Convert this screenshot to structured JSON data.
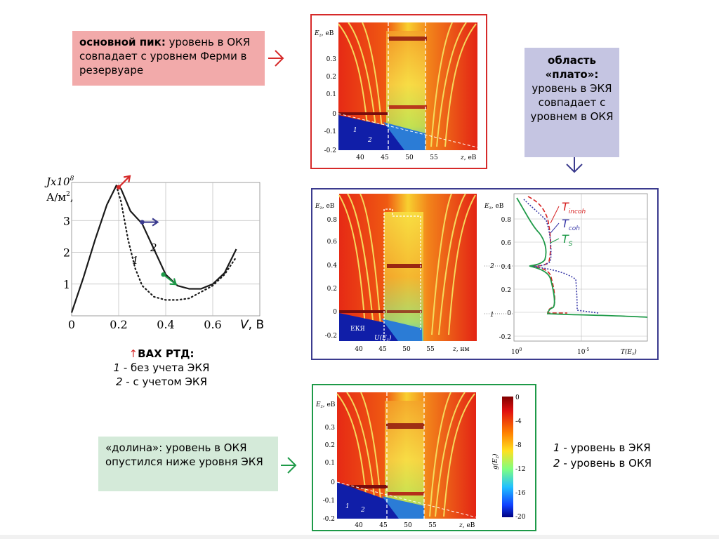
{
  "notes": {
    "peak": {
      "bold": "основной пик:",
      "text": " уровень в ОКЯ совпадает с уровнем Ферми в резервуаре"
    },
    "plateau": {
      "line1": "область",
      "line2": "«плато»:",
      "text": "уровень в ЭКЯ совпадает с уровнем в ОКЯ"
    },
    "valley": {
      "text": "«долина»: уровень в ОКЯ опустился ниже уровня ЭКЯ"
    }
  },
  "iv_chart": {
    "ylabel_main": "Jx10",
    "ylabel_exp": "8",
    "ylabel_unit": "А/м",
    "ylabel_unit_exp": "2",
    "xlabel": "V",
    "xunit": ", В",
    "xticks": [
      "0",
      "0.2",
      "0.4",
      "0.6"
    ],
    "yticks": [
      "1",
      "2",
      "3"
    ],
    "curve_labels": [
      "1",
      "2"
    ],
    "chart_data": {
      "type": "line",
      "xlim": [
        0,
        0.8
      ],
      "ylim": [
        0,
        4.2
      ],
      "series": [
        {
          "label": "2",
          "style": "solid",
          "x": [
            0,
            0.05,
            0.1,
            0.15,
            0.19,
            0.21,
            0.25,
            0.3,
            0.35,
            0.4,
            0.45,
            0.5,
            0.55,
            0.6,
            0.65,
            0.7
          ],
          "y": [
            0.1,
            1.2,
            2.4,
            3.5,
            4.1,
            4.0,
            3.3,
            2.9,
            2.1,
            1.3,
            0.95,
            0.85,
            0.85,
            1.0,
            1.35,
            2.1
          ]
        },
        {
          "label": "1",
          "style": "dotted",
          "x": [
            0.19,
            0.21,
            0.24,
            0.27,
            0.3,
            0.35,
            0.4,
            0.45,
            0.5,
            0.55,
            0.6,
            0.65,
            0.7
          ],
          "y": [
            4.1,
            3.6,
            2.4,
            1.5,
            0.95,
            0.6,
            0.5,
            0.5,
            0.55,
            0.75,
            0.95,
            1.3,
            1.85
          ]
        }
      ]
    }
  },
  "caption": {
    "arrow": "↑",
    "title": "ВАХ РТД:",
    "line1_num": "1",
    "line1_text": " - без учета ЭКЯ",
    "line2_num": "2",
    "line2_text": " - с учетом ЭКЯ"
  },
  "heatmaps": {
    "top": {
      "ylabel": "E",
      "ylabel_sub": "z",
      "ylabel_unit": ", eB",
      "yticks": [
        "0.3",
        "0.2",
        "0.1",
        "0",
        "-0.1",
        "-0.2"
      ],
      "xticks": [
        "40",
        "45",
        "50",
        "55"
      ],
      "xlabel": "z",
      "xunit": ", eB",
      "level_labels": [
        "1",
        "2"
      ]
    },
    "middle": {
      "ylabel": "E",
      "ylabel_sub": "z",
      "ylabel_unit": ", eB",
      "yticks": [
        "0.8",
        "0.6",
        "0.4",
        "0.2",
        "0",
        "-0.2"
      ],
      "xticks": [
        "40",
        "45",
        "50",
        "55"
      ],
      "xlabel": "z",
      "xunit": ", нм",
      "eky_label": "ЕКЯ",
      "potential_label": "U(E",
      "potential_sub": "z",
      "potential_close": ")"
    },
    "bottom": {
      "ylabel": "E",
      "ylabel_sub": "z",
      "ylabel_unit": ", eB",
      "yticks": [
        "0.3",
        "0.2",
        "0.1",
        "0",
        "-0.1",
        "-0.2"
      ],
      "xticks": [
        "40",
        "45",
        "50",
        "55"
      ],
      "xlabel": "z",
      "xunit": ", eB",
      "level_labels": [
        "1",
        "2"
      ]
    }
  },
  "transmission": {
    "ylabel": "E",
    "ylabel_sub": "z",
    "ylabel_unit": ", eB",
    "yticks": [
      "0.8",
      "0.6",
      "0.4",
      "0.2",
      "0",
      "-0.2"
    ],
    "xtick_left": "10",
    "xtick_left_exp": "0",
    "xtick_mid": "10",
    "xtick_mid_exp": "-5",
    "xlabel": "T(E",
    "xlabel_sub": "z",
    "xlabel_close": ")",
    "level_marks": [
      "2",
      "1"
    ],
    "legend": [
      {
        "label": "T",
        "sub": "incoh",
        "color": "#d62020"
      },
      {
        "label": "T",
        "sub": "coh",
        "color": "#3a3aa8"
      },
      {
        "label": "T",
        "sub": "S",
        "color": "#1e9a48"
      }
    ]
  },
  "colorbar": {
    "label": "g(E",
    "label_sub": "z",
    "label_close": ")",
    "ticks": [
      "0",
      "-4",
      "-8",
      "-12",
      "-16",
      "-20"
    ]
  },
  "level_legend": {
    "line1_num": "1",
    "line1_text": " - уровень в ЭКЯ",
    "line2_num": "2",
    "line2_text": " - уровень в ОКЯ"
  },
  "colors": {
    "red": "#d62a2a",
    "blue": "#3b3b8e",
    "green": "#1e9a48",
    "peak_bg": "#f2aaaa",
    "plateau_bg": "#c5c5e2",
    "valley_bg": "#d4ead9"
  }
}
